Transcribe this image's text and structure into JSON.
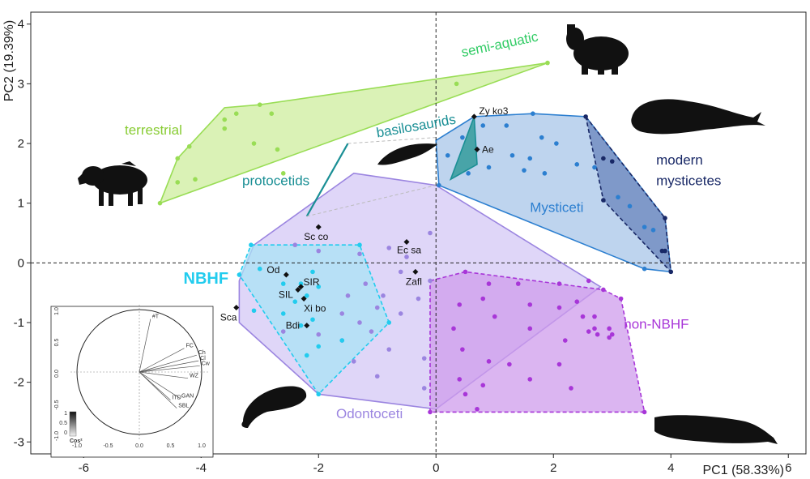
{
  "chart_data": {
    "type": "scatter",
    "xlabel": "PC1 (58.33%)",
    "ylabel": "PC2 (19.39%)",
    "xlim": [
      -6.9,
      6.3
    ],
    "ylim": [
      -3.2,
      4.2
    ],
    "xticks": [
      "-6",
      "-4",
      "-2",
      "0",
      "2",
      "4",
      "6"
    ],
    "yticks": [
      "-3",
      "-2",
      "-1",
      "0",
      "1",
      "2",
      "3",
      "4"
    ],
    "reference_lines": {
      "x": 0,
      "y": 0,
      "style": "dashed"
    },
    "groups": [
      {
        "name": "terrestrial",
        "color": "#99dd55",
        "fill": "#cdee9e",
        "hull": [
          [
            -4.7,
            1.0
          ],
          [
            -4.4,
            1.75
          ],
          [
            -3.6,
            2.6
          ],
          [
            -3.0,
            2.65
          ],
          [
            1.9,
            3.35
          ]
        ],
        "points": [
          [
            -4.7,
            1.0
          ],
          [
            -4.4,
            1.35
          ],
          [
            -4.4,
            1.75
          ],
          [
            -4.2,
            1.95
          ],
          [
            -4.1,
            1.4
          ],
          [
            -3.6,
            2.4
          ],
          [
            -3.6,
            2.25
          ],
          [
            -3.4,
            2.5
          ],
          [
            -3.0,
            2.65
          ],
          [
            -2.8,
            2.5
          ],
          [
            -2.7,
            1.9
          ],
          [
            -2.6,
            1.5
          ],
          [
            -3.1,
            2.0
          ],
          [
            0.35,
            3.0
          ],
          [
            1.9,
            3.35
          ]
        ]
      },
      {
        "name": "protocetids",
        "color": "#1a8f95",
        "line": [
          [
            -2.2,
            0.78
          ],
          [
            -1.5,
            2.0
          ]
        ]
      },
      {
        "name": "basilosaurids",
        "color": "#1a8f95",
        "fill": "#3b9fa0",
        "hull": [
          [
            0.65,
            2.45
          ],
          [
            0.25,
            1.4
          ],
          [
            0.7,
            1.65
          ]
        ]
      },
      {
        "name": "Odontoceti",
        "color": "#9b85e0",
        "fill": "#d4c8f5",
        "hull": [
          [
            -1.4,
            1.5
          ],
          [
            0.0,
            1.3
          ],
          [
            2.8,
            -0.4
          ],
          [
            0.0,
            -2.45
          ],
          [
            -2.0,
            -2.2
          ],
          [
            -3.35,
            -1.0
          ],
          [
            -3.35,
            -0.3
          ],
          [
            -3.1,
            0.3
          ]
        ],
        "points": [
          [
            -2.4,
            0.3
          ],
          [
            -2.0,
            0.2
          ],
          [
            -1.3,
            0.15
          ],
          [
            -0.8,
            0.25
          ],
          [
            -0.5,
            0.1
          ],
          [
            -0.1,
            0.5
          ],
          [
            -0.6,
            -0.15
          ],
          [
            -1.2,
            -0.35
          ],
          [
            -1.5,
            -0.55
          ],
          [
            -1.0,
            -0.75
          ],
          [
            -0.6,
            -0.85
          ],
          [
            -0.3,
            -0.6
          ],
          [
            -0.1,
            -0.3
          ],
          [
            -1.3,
            -1.0
          ],
          [
            -0.8,
            -1.45
          ],
          [
            -0.2,
            -1.6
          ],
          [
            -1.0,
            -1.9
          ],
          [
            -0.2,
            -2.1
          ],
          [
            -2.6,
            -1.15
          ],
          [
            -2.0,
            -1.2
          ],
          [
            -1.6,
            -1.3
          ],
          [
            -1.6,
            -0.85
          ],
          [
            -1.1,
            -1.15
          ],
          [
            -1.4,
            -1.65
          ],
          [
            -0.9,
            -0.55
          ]
        ]
      },
      {
        "name": "NBHF",
        "color": "#22ccee",
        "fill": "#aae3f5",
        "hull": [
          [
            -3.15,
            0.3
          ],
          [
            -1.3,
            0.3
          ],
          [
            -0.8,
            -1.0
          ],
          [
            -2.0,
            -2.2
          ],
          [
            -3.35,
            -0.2
          ]
        ],
        "points": [
          [
            -3.15,
            0.3
          ],
          [
            -1.3,
            0.3
          ],
          [
            -0.8,
            -1.0
          ],
          [
            -2.0,
            -2.2
          ],
          [
            -3.35,
            -0.2
          ],
          [
            -3.0,
            -0.1
          ],
          [
            -2.6,
            -0.35
          ],
          [
            -2.3,
            -0.35
          ],
          [
            -2.1,
            -0.15
          ],
          [
            -2.4,
            -0.65
          ],
          [
            -2.2,
            -0.55
          ],
          [
            -2.0,
            -0.4
          ],
          [
            -2.1,
            -0.95
          ],
          [
            -2.3,
            -1.05
          ],
          [
            -2.6,
            -0.85
          ],
          [
            -3.1,
            -0.8
          ],
          [
            -2.0,
            -1.4
          ],
          [
            -1.6,
            -1.3
          ],
          [
            -2.2,
            -1.55
          ]
        ]
      },
      {
        "name": "non-NBHF",
        "color": "#a836d8",
        "fill": "#cf9cec",
        "hull": [
          [
            -0.1,
            -0.3
          ],
          [
            0.5,
            -0.15
          ],
          [
            2.85,
            -0.45
          ],
          [
            3.15,
            -0.6
          ],
          [
            3.55,
            -2.5
          ],
          [
            -0.1,
            -2.5
          ]
        ],
        "points": [
          [
            0.5,
            -0.15
          ],
          [
            0.9,
            -0.35
          ],
          [
            1.4,
            -0.35
          ],
          [
            2.1,
            -0.35
          ],
          [
            2.6,
            -0.3
          ],
          [
            2.85,
            -0.45
          ],
          [
            3.15,
            -0.6
          ],
          [
            0.4,
            -0.7
          ],
          [
            0.8,
            -0.6
          ],
          [
            1.0,
            -0.9
          ],
          [
            1.6,
            -0.7
          ],
          [
            2.1,
            -0.75
          ],
          [
            2.4,
            -0.65
          ],
          [
            2.5,
            -0.9
          ],
          [
            2.7,
            -0.9
          ],
          [
            2.7,
            -1.1
          ],
          [
            2.75,
            -1.2
          ],
          [
            2.95,
            -1.1
          ],
          [
            2.95,
            -1.25
          ],
          [
            3.0,
            -1.2
          ],
          [
            0.3,
            -1.1
          ],
          [
            0.45,
            -1.45
          ],
          [
            1.6,
            -1.1
          ],
          [
            2.2,
            -1.3
          ],
          [
            2.6,
            -1.15
          ],
          [
            0.9,
            -1.65
          ],
          [
            1.25,
            -1.7
          ],
          [
            2.1,
            -1.7
          ],
          [
            0.4,
            -1.95
          ],
          [
            0.8,
            -2.05
          ],
          [
            1.6,
            -1.95
          ],
          [
            2.3,
            -2.1
          ],
          [
            0.5,
            -2.2
          ],
          [
            3.55,
            -2.5
          ],
          [
            -0.1,
            -2.5
          ],
          [
            0.7,
            -2.45
          ]
        ]
      },
      {
        "name": "Mysticeti",
        "color": "#2c7fd0",
        "fill": "#a8c6e8",
        "hull": [
          [
            0.0,
            2.05
          ],
          [
            0.65,
            2.45
          ],
          [
            1.65,
            2.5
          ],
          [
            2.55,
            2.45
          ],
          [
            3.9,
            0.75
          ],
          [
            4.0,
            -0.15
          ],
          [
            3.55,
            -0.1
          ],
          [
            0.05,
            1.3
          ]
        ],
        "points": [
          [
            0.8,
            2.3
          ],
          [
            1.2,
            2.3
          ],
          [
            1.65,
            2.5
          ],
          [
            1.8,
            2.1
          ],
          [
            2.05,
            2.0
          ],
          [
            1.3,
            1.8
          ],
          [
            1.6,
            1.75
          ],
          [
            2.4,
            1.65
          ],
          [
            0.55,
            1.5
          ],
          [
            0.9,
            1.6
          ],
          [
            1.5,
            1.55
          ],
          [
            1.85,
            1.5
          ],
          [
            0.45,
            2.1
          ],
          [
            0.2,
            1.8
          ],
          [
            0.05,
            1.3
          ],
          [
            2.7,
            1.6
          ],
          [
            3.1,
            1.1
          ],
          [
            3.3,
            0.95
          ],
          [
            3.55,
            0.6
          ],
          [
            3.7,
            0.55
          ],
          [
            3.55,
            -0.1
          ]
        ]
      },
      {
        "name": "modern mysticetes",
        "color": "#182866",
        "fill": "#6a86bc",
        "hull": [
          [
            2.55,
            2.45
          ],
          [
            3.9,
            0.75
          ],
          [
            4.0,
            -0.15
          ],
          [
            2.85,
            1.05
          ]
        ],
        "points": [
          [
            2.55,
            2.45
          ],
          [
            2.85,
            1.05
          ],
          [
            2.85,
            1.75
          ],
          [
            3.0,
            1.7
          ],
          [
            3.9,
            0.75
          ],
          [
            4.0,
            -0.15
          ],
          [
            3.9,
            0.2
          ],
          [
            3.85,
            0.2
          ]
        ]
      }
    ],
    "species_points": [
      {
        "label": "Zy ko3",
        "x": 0.65,
        "y": 2.45
      },
      {
        "label": "Ae",
        "x": 0.7,
        "y": 1.9
      },
      {
        "label": "Sc co",
        "x": -2.0,
        "y": 0.6
      },
      {
        "label": "Ec sa",
        "x": -0.5,
        "y": 0.35
      },
      {
        "label": "Zafl",
        "x": -0.35,
        "y": -0.15
      },
      {
        "label": "Od",
        "x": -2.55,
        "y": -0.2
      },
      {
        "label": "SIR",
        "x": -2.3,
        "y": -0.4
      },
      {
        "label": "SIL",
        "x": -2.35,
        "y": -0.45
      },
      {
        "label": "Xi bo",
        "x": -2.25,
        "y": -0.6
      },
      {
        "label": "Bdi",
        "x": -2.2,
        "y": -1.05
      },
      {
        "label": "Sca",
        "x": -3.4,
        "y": -0.75
      }
    ],
    "group_labels": [
      {
        "name": "terrestrial",
        "text": "terrestrial",
        "color": "#88cc33",
        "x": -5.3,
        "y": 2.15
      },
      {
        "name": "semi-aquatic",
        "text": "semi-aquatic",
        "color": "#33cc66",
        "x": 0.45,
        "y": 3.45
      },
      {
        "name": "protocetids",
        "text": "protocetids",
        "color": "#1a8f95",
        "x": -3.3,
        "y": 1.3
      },
      {
        "name": "basilosaurids",
        "text": "basilosaurids",
        "color": "#1a8f95",
        "x": -1.0,
        "y": 2.1
      },
      {
        "name": "NBHF",
        "text": "NBHF",
        "color": "#22ccee",
        "x": -4.3,
        "y": -0.35
      },
      {
        "name": "Odontoceti",
        "text": "Odontoceti",
        "color": "#9b85e0",
        "x": -1.7,
        "y": -2.6
      },
      {
        "name": "non-NBHF",
        "text": "non-NBHF",
        "color": "#a836d8",
        "x": 3.2,
        "y": -1.1
      },
      {
        "name": "Mysticeti",
        "text": "Mysticeti",
        "color": "#2c7fd0",
        "x": 1.6,
        "y": 0.85
      },
      {
        "name": "modern1",
        "text": "modern",
        "color": "#182866",
        "x": 3.75,
        "y": 1.65
      },
      {
        "name": "modern2",
        "text": "mysticetes",
        "color": "#182866",
        "x": 3.75,
        "y": 1.3
      }
    ],
    "inset": {
      "type": "correlation-circle",
      "xlim": [
        -1.0,
        1.0
      ],
      "ylim": [
        -1.0,
        1.0
      ],
      "xticks": [
        "-1.0",
        "-0.5",
        "0.0",
        "0.5",
        "1.0"
      ],
      "yticks": [
        "-1.0",
        "-0.5",
        "0.0",
        "0.5",
        "1.0"
      ],
      "colorbar_label": "Cos²",
      "colorbar_ticks": [
        "1",
        "0.5",
        "0"
      ],
      "variables": [
        {
          "name": "#T",
          "x": 0.18,
          "y": 0.85
        },
        {
          "name": "FC",
          "x": 0.72,
          "y": 0.38
        },
        {
          "name": "Ch",
          "x": 0.92,
          "y": 0.27
        },
        {
          "name": "Cl",
          "x": 0.95,
          "y": 0.18
        },
        {
          "name": "Cw",
          "x": 0.97,
          "y": 0.1
        },
        {
          "name": "WZ",
          "x": 0.78,
          "y": -0.1
        },
        {
          "name": "ITD",
          "x": 0.5,
          "y": -0.45
        },
        {
          "name": "GAN",
          "x": 0.65,
          "y": -0.42
        },
        {
          "name": "SBL",
          "x": 0.6,
          "y": -0.58
        }
      ]
    }
  }
}
